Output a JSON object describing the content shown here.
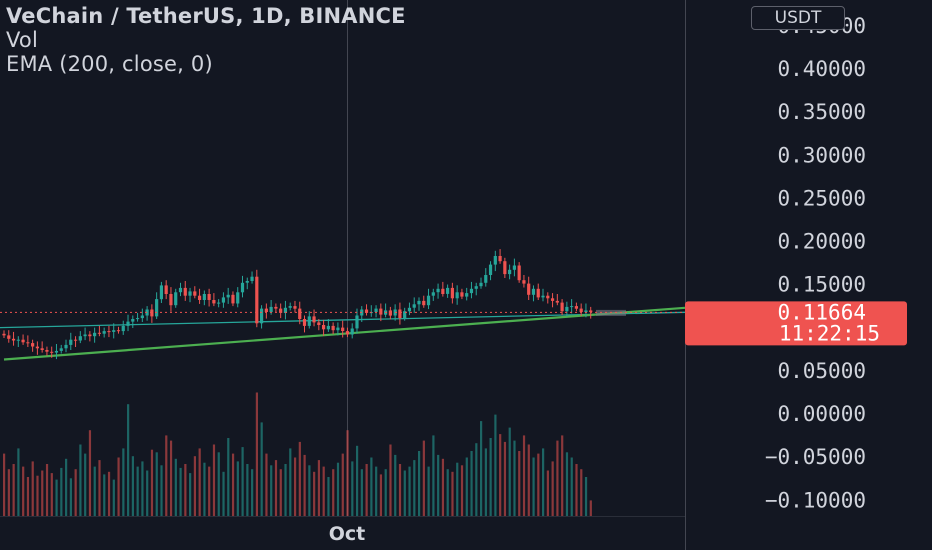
{
  "legend": {
    "title": "VeChain / TetherUS, 1D, BINANCE",
    "vol": "Vol",
    "ema": "EMA (200, close, 0)"
  },
  "currency_button": "USDT",
  "last_price": {
    "price": "0.11664",
    "countdown": "11:22:15"
  },
  "x_axis_label": "Oct",
  "colors": {
    "background": "#131722",
    "up": "#26a69a",
    "down": "#ef5350",
    "ema": "#26a69a",
    "trendline": "#4caf50",
    "price_tag": "#ef5350",
    "axis_text": "#d1d4dc"
  },
  "chart_data": {
    "type": "candlestick",
    "y_ticks": [
      "0.40000",
      "0.35000",
      "0.30000",
      "0.25000",
      "0.20000",
      "0.15000",
      "0.05000",
      "0.00000",
      "−0.05000",
      "−0.10000"
    ],
    "y_tick_values": [
      0.4,
      0.35,
      0.3,
      0.25,
      0.2,
      0.15,
      0.05,
      0.0,
      -0.05,
      -0.1
    ],
    "ylim": [
      -0.115,
      0.455
    ],
    "x_tick": "Oct",
    "last_price": 0.11664,
    "closes": [
      0.09,
      0.086,
      0.084,
      0.085,
      0.082,
      0.081,
      0.077,
      0.075,
      0.073,
      0.071,
      0.07,
      0.072,
      0.075,
      0.079,
      0.085,
      0.084,
      0.089,
      0.091,
      0.089,
      0.093,
      0.092,
      0.095,
      0.094,
      0.096,
      0.095,
      0.101,
      0.106,
      0.109,
      0.11,
      0.113,
      0.12,
      0.112,
      0.132,
      0.148,
      0.138,
      0.125,
      0.14,
      0.145,
      0.136,
      0.141,
      0.136,
      0.131,
      0.138,
      0.131,
      0.127,
      0.128,
      0.134,
      0.137,
      0.127,
      0.14,
      0.151,
      0.153,
      0.158,
      0.104,
      0.121,
      0.117,
      0.123,
      0.121,
      0.116,
      0.122,
      0.124,
      0.121,
      0.109,
      0.101,
      0.112,
      0.105,
      0.102,
      0.097,
      0.101,
      0.096,
      0.099,
      0.095,
      0.091,
      0.098,
      0.113,
      0.12,
      0.116,
      0.117,
      0.121,
      0.114,
      0.119,
      0.113,
      0.12,
      0.11,
      0.118,
      0.122,
      0.126,
      0.13,
      0.125,
      0.136,
      0.14,
      0.144,
      0.138,
      0.145,
      0.133,
      0.14,
      0.135,
      0.139,
      0.144,
      0.147,
      0.151,
      0.16,
      0.172,
      0.182,
      0.176,
      0.161,
      0.166,
      0.171,
      0.154,
      0.15,
      0.137,
      0.144,
      0.134,
      0.136,
      0.133,
      0.13,
      0.128,
      0.118,
      0.123,
      0.124,
      0.121,
      0.117,
      0.119,
      0.117
    ],
    "volumes": [
      0.48,
      0.36,
      0.4,
      0.52,
      0.38,
      0.3,
      0.42,
      0.31,
      0.35,
      0.4,
      0.33,
      0.28,
      0.37,
      0.44,
      0.29,
      0.36,
      0.55,
      0.48,
      0.66,
      0.38,
      0.43,
      0.32,
      0.34,
      0.28,
      0.45,
      0.52,
      0.86,
      0.46,
      0.38,
      0.42,
      0.35,
      0.51,
      0.49,
      0.39,
      0.62,
      0.58,
      0.44,
      0.37,
      0.4,
      0.33,
      0.46,
      0.52,
      0.41,
      0.38,
      0.55,
      0.49,
      0.34,
      0.6,
      0.48,
      0.42,
      0.53,
      0.4,
      0.36,
      0.95,
      0.72,
      0.48,
      0.39,
      0.43,
      0.36,
      0.4,
      0.52,
      0.45,
      0.57,
      0.47,
      0.39,
      0.34,
      0.43,
      0.38,
      0.3,
      0.36,
      0.41,
      0.48,
      0.66,
      0.42,
      0.54,
      0.36,
      0.4,
      0.45,
      0.38,
      0.32,
      0.36,
      0.55,
      0.47,
      0.4,
      0.35,
      0.38,
      0.43,
      0.5,
      0.58,
      0.38,
      0.62,
      0.47,
      0.44,
      0.36,
      0.34,
      0.41,
      0.39,
      0.45,
      0.5,
      0.56,
      0.73,
      0.52,
      0.6,
      0.78,
      0.63,
      0.57,
      0.68,
      0.58,
      0.5,
      0.62,
      0.55,
      0.45,
      0.48,
      0.52,
      0.35,
      0.42,
      0.58,
      0.62,
      0.49,
      0.45,
      0.4,
      0.36,
      0.3,
      0.12
    ],
    "volume_max_label": "",
    "ema_200": [
      0.099,
      0.1168
    ],
    "trendline": [
      0.062,
      0.122
    ]
  }
}
